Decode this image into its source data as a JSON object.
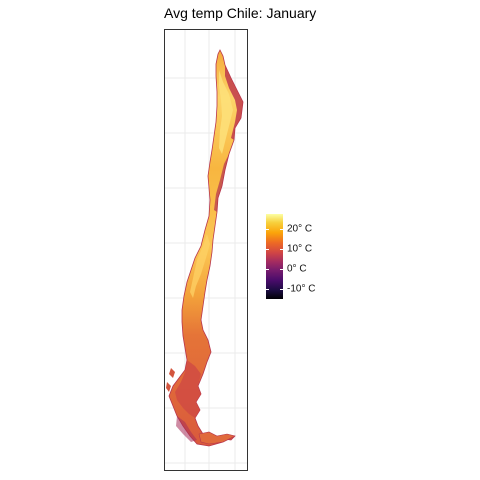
{
  "title": "Avg temp Chile: January",
  "legend": {
    "colormap": "inferno",
    "ticks": [
      {
        "value": 20,
        "label": "20° C"
      },
      {
        "value": 10,
        "label": "10° C"
      },
      {
        "value": 0,
        "label": "0° C"
      },
      {
        "value": -10,
        "label": "-10° C"
      }
    ],
    "range": [
      -13,
      27
    ]
  },
  "colors": {
    "north_coast": "#f6b93b",
    "desert_interior": "#fbd364",
    "central_valley": "#f9b741",
    "andes_edge": "#c0394b",
    "south": "#e4713a",
    "patagonia": "#d85a3e"
  }
}
